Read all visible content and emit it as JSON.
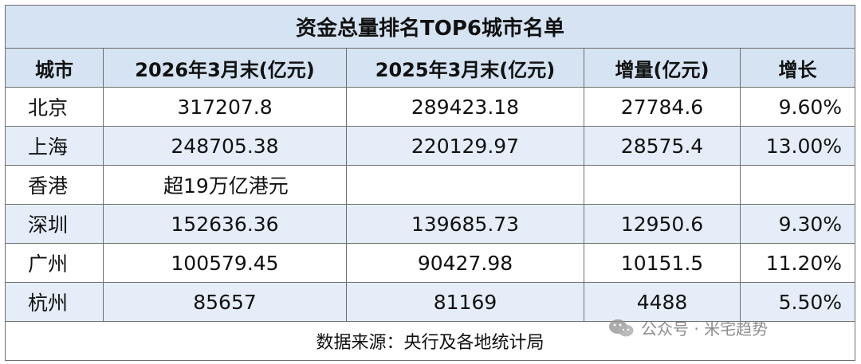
{
  "title": "资金总量排名TOP6城市名单",
  "headers": [
    "城市",
    "2026年3月末(亿元)",
    "2025年3月末(亿元)",
    "增量(亿元)",
    "增长"
  ],
  "rows": [
    {
      "city": "北京",
      "y2026": "317207.8",
      "y2025": "289423.18",
      "increase": "27784.6",
      "growth": "9.60%"
    },
    {
      "city": "上海",
      "y2026": "248705.38",
      "y2025": "220129.97",
      "increase": "28575.4",
      "growth": "13.00%"
    },
    {
      "city": "香港",
      "y2026": "超19万亿港元",
      "y2025": "",
      "increase": "",
      "growth": ""
    },
    {
      "city": "深圳",
      "y2026": "152636.36",
      "y2025": "139685.73",
      "increase": "12950.6",
      "growth": "9.30%"
    },
    {
      "city": "广州",
      "y2026": "100579.45",
      "y2025": "90427.98",
      "increase": "10151.5",
      "growth": "11.20%"
    },
    {
      "city": "杭州",
      "y2026": "85657",
      "y2025": "81169",
      "increase": "4488",
      "growth": "5.50%"
    }
  ],
  "source": "数据来源：央行及各地统计局",
  "watermark": "公众号 · 米宅趋势",
  "colors": {
    "header_bg": "#d5e3f2",
    "row_shade": "#e5eef8",
    "border": "#6e6e6e"
  }
}
